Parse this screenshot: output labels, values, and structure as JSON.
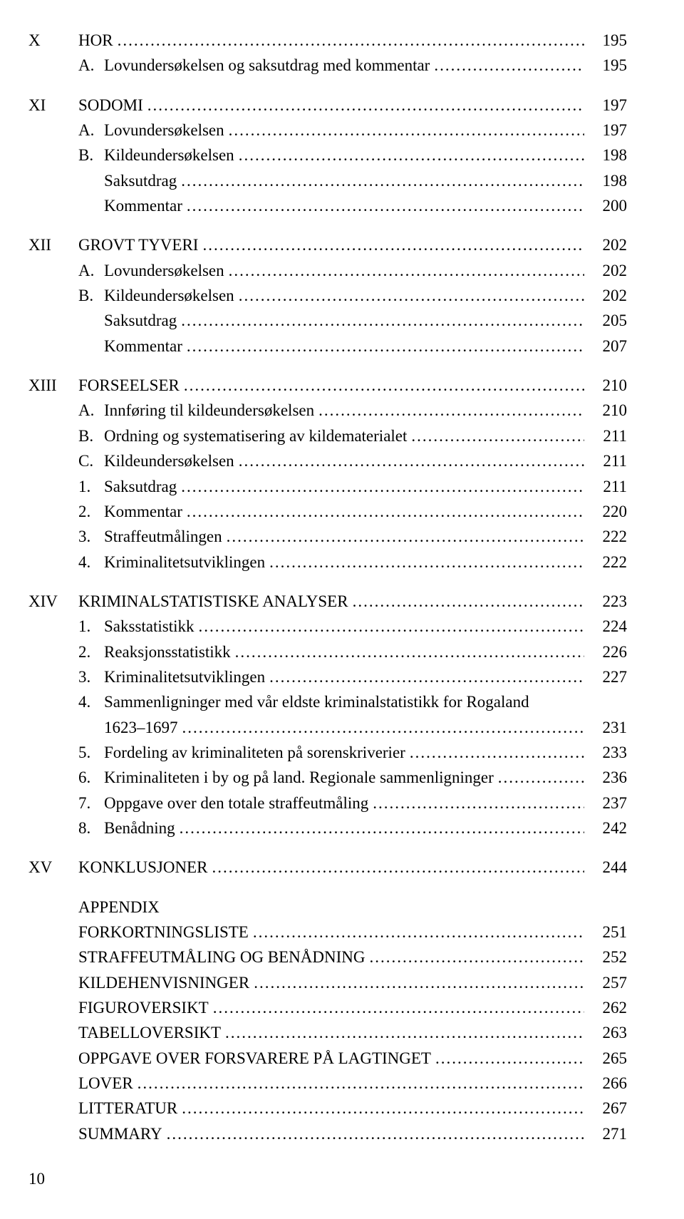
{
  "chapters": [
    {
      "roman": "X",
      "title": "HOR",
      "page": "195",
      "items": [
        {
          "m": "A.",
          "t": "Lovundersøkelsen og saksutdrag med kommentar",
          "p": "195"
        }
      ]
    },
    {
      "roman": "XI",
      "title": "SODOMI",
      "page": "197",
      "items": [
        {
          "m": "A.",
          "t": "Lovundersøkelsen",
          "p": "197"
        },
        {
          "m": "B.",
          "t": "Kildeundersøkelsen",
          "p": "198"
        },
        {
          "m": "",
          "t": "Saksutdrag",
          "p": "198"
        },
        {
          "m": "",
          "t": "Kommentar",
          "p": "200"
        }
      ]
    },
    {
      "roman": "XII",
      "title": "GROVT TYVERI",
      "page": "202",
      "items": [
        {
          "m": "A.",
          "t": "Lovundersøkelsen",
          "p": "202"
        },
        {
          "m": "B.",
          "t": "Kildeundersøkelsen",
          "p": "202"
        },
        {
          "m": "",
          "t": "Saksutdrag",
          "p": "205"
        },
        {
          "m": "",
          "t": "Kommentar",
          "p": "207"
        }
      ]
    },
    {
      "roman": "XIII",
      "title": "FORSEELSER",
      "page": "210",
      "items": [
        {
          "m": "A.",
          "t": "Innføring til kildeundersøkelsen",
          "p": "210"
        },
        {
          "m": "B.",
          "t": "Ordning og systematisering av kildematerialet",
          "p": "211"
        },
        {
          "m": "C.",
          "t": "Kildeundersøkelsen",
          "p": "211"
        },
        {
          "m": "1.",
          "t": "Saksutdrag",
          "p": "211"
        },
        {
          "m": "2.",
          "t": "Kommentar",
          "p": "220"
        },
        {
          "m": "3.",
          "t": "Straffeutmålingen",
          "p": "222"
        },
        {
          "m": "4.",
          "t": "Kriminalitetsutviklingen",
          "p": "222"
        }
      ]
    },
    {
      "roman": "XIV",
      "title": "KRIMINALSTATISTISKE ANALYSER",
      "page": "223",
      "items": [
        {
          "m": "1.",
          "t": "Saksstatistikk",
          "p": "224"
        },
        {
          "m": "2.",
          "t": "Reaksjonsstatistikk",
          "p": "226"
        },
        {
          "m": "3.",
          "t": "Kriminalitetsutviklingen",
          "p": "227"
        },
        {
          "m": "4.",
          "t": "Sammenligninger med vår eldste kriminalstatistikk for Rogaland 1623–1697",
          "p": "231",
          "wrap": true
        },
        {
          "m": "5.",
          "t": "Fordeling av kriminaliteten på sorenskriverier",
          "p": "233"
        },
        {
          "m": "6.",
          "t": "Kriminaliteten i by og på land. Regionale sammenligninger",
          "p": "236"
        },
        {
          "m": "7.",
          "t": "Oppgave over den totale straffeutmåling",
          "p": "237"
        },
        {
          "m": "8.",
          "t": "Benådning",
          "p": "242"
        }
      ]
    },
    {
      "roman": "XV",
      "title": "KONKLUSJONER",
      "page": "244",
      "items": []
    }
  ],
  "appendix_heading": "APPENDIX",
  "appendix": [
    {
      "t": "FORKORTNINGSLISTE",
      "p": "251"
    },
    {
      "t": "STRAFFEUTMÅLING OG BENÅDNING",
      "p": "252"
    },
    {
      "t": "KILDEHENVISNINGER",
      "p": "257"
    },
    {
      "t": "FIGUROVERSIKT",
      "p": "262"
    },
    {
      "t": "TABELLOVERSIKT",
      "p": "263"
    },
    {
      "t": "OPPGAVE OVER FORSVARERE PÅ LAGTINGET",
      "p": "265"
    },
    {
      "t": "LOVER",
      "p": "266"
    },
    {
      "t": "LITTERATUR",
      "p": "267"
    },
    {
      "t": "SUMMARY",
      "p": "271"
    }
  ],
  "footer_page": "10"
}
